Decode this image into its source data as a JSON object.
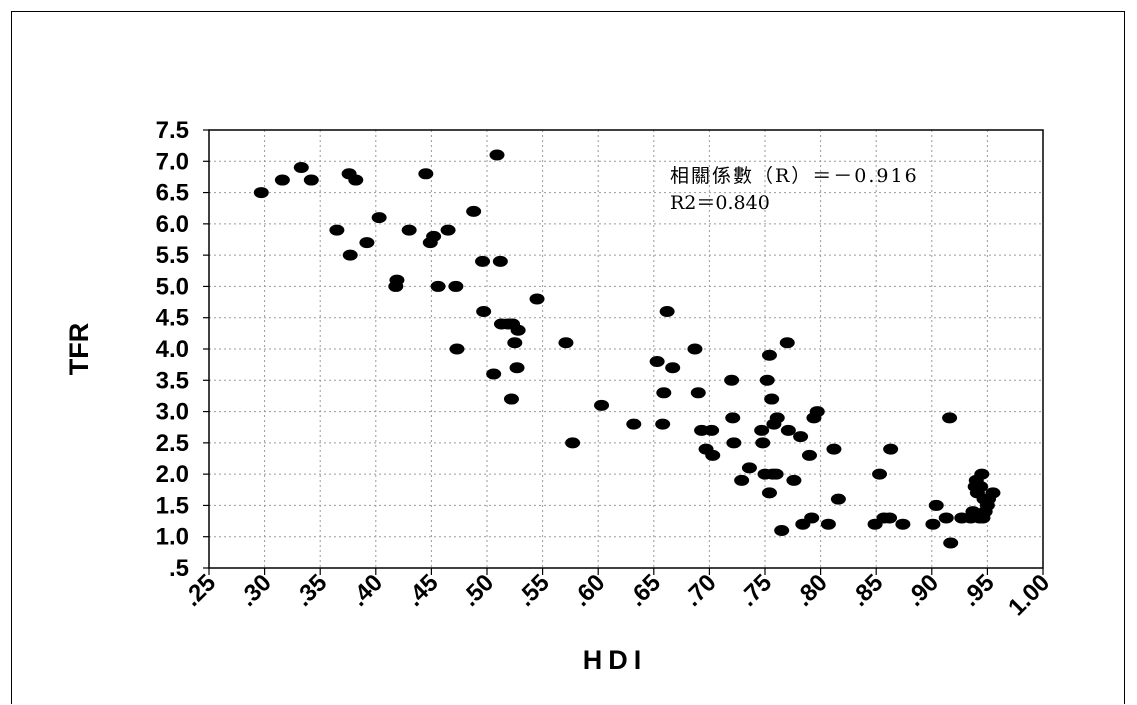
{
  "chart_data": {
    "type": "scatter",
    "title": "",
    "xlabel": "HDI",
    "ylabel": "TFR",
    "xlim": [
      0.25,
      1.0
    ],
    "ylim": [
      0.5,
      7.5
    ],
    "x_ticks": [
      0.25,
      0.3,
      0.35,
      0.4,
      0.45,
      0.5,
      0.55,
      0.6,
      0.65,
      0.7,
      0.75,
      0.8,
      0.85,
      0.9,
      0.95,
      1.0
    ],
    "x_tick_labels": [
      ".25",
      ".30",
      ".35",
      ".40",
      ".45",
      ".50",
      ".55",
      ".60",
      ".65",
      ".70",
      ".75",
      ".80",
      ".85",
      ".90",
      ".95",
      "1.00"
    ],
    "y_ticks": [
      0.5,
      1.0,
      1.5,
      2.0,
      2.5,
      3.0,
      3.5,
      4.0,
      4.5,
      5.0,
      5.5,
      6.0,
      6.5,
      7.0,
      7.5
    ],
    "y_tick_labels": [
      ".5",
      "1.0",
      "1.5",
      "2.0",
      "2.5",
      "3.0",
      "3.5",
      "4.0",
      "4.5",
      "5.0",
      "5.5",
      "6.0",
      "6.5",
      "7.0",
      "7.5"
    ],
    "grid": true,
    "grid_style": "dotted",
    "legend": "none",
    "marker_color": "#000000",
    "annotations": [
      "相關係數（R）＝－0.916",
      "R2＝0.840"
    ],
    "points": [
      [
        0.297,
        6.5
      ],
      [
        0.316,
        6.7
      ],
      [
        0.333,
        6.9
      ],
      [
        0.342,
        6.7
      ],
      [
        0.376,
        6.8
      ],
      [
        0.382,
        6.7
      ],
      [
        0.365,
        5.9
      ],
      [
        0.377,
        5.5
      ],
      [
        0.392,
        5.7
      ],
      [
        0.403,
        6.1
      ],
      [
        0.418,
        5.0
      ],
      [
        0.419,
        5.1
      ],
      [
        0.43,
        5.9
      ],
      [
        0.445,
        6.8
      ],
      [
        0.449,
        5.7
      ],
      [
        0.452,
        5.8
      ],
      [
        0.465,
        5.9
      ],
      [
        0.456,
        5.0
      ],
      [
        0.472,
        5.0
      ],
      [
        0.473,
        4.0
      ],
      [
        0.488,
        6.2
      ],
      [
        0.496,
        5.4
      ],
      [
        0.497,
        4.6
      ],
      [
        0.506,
        3.6
      ],
      [
        0.509,
        7.1
      ],
      [
        0.512,
        5.4
      ],
      [
        0.513,
        4.4
      ],
      [
        0.519,
        4.4
      ],
      [
        0.522,
        3.2
      ],
      [
        0.523,
        4.4
      ],
      [
        0.525,
        4.1
      ],
      [
        0.527,
        3.7
      ],
      [
        0.528,
        4.3
      ],
      [
        0.545,
        4.8
      ],
      [
        0.571,
        4.1
      ],
      [
        0.577,
        2.5
      ],
      [
        0.603,
        3.1
      ],
      [
        0.632,
        2.8
      ],
      [
        0.653,
        3.8
      ],
      [
        0.659,
        3.3
      ],
      [
        0.658,
        2.8
      ],
      [
        0.662,
        4.6
      ],
      [
        0.667,
        3.7
      ],
      [
        0.687,
        4.0
      ],
      [
        0.69,
        3.3
      ],
      [
        0.693,
        2.7
      ],
      [
        0.697,
        2.4
      ],
      [
        0.702,
        2.7
      ],
      [
        0.703,
        2.3
      ],
      [
        0.72,
        3.5
      ],
      [
        0.721,
        2.9
      ],
      [
        0.722,
        2.5
      ],
      [
        0.729,
        1.9
      ],
      [
        0.736,
        2.1
      ],
      [
        0.747,
        2.7
      ],
      [
        0.748,
        2.5
      ],
      [
        0.75,
        2.0
      ],
      [
        0.752,
        3.5
      ],
      [
        0.754,
        1.7
      ],
      [
        0.754,
        3.9
      ],
      [
        0.756,
        3.2
      ],
      [
        0.757,
        2.0
      ],
      [
        0.758,
        2.8
      ],
      [
        0.76,
        2.0
      ],
      [
        0.761,
        2.9
      ],
      [
        0.765,
        1.1
      ],
      [
        0.77,
        4.1
      ],
      [
        0.771,
        2.7
      ],
      [
        0.776,
        1.9
      ],
      [
        0.782,
        2.6
      ],
      [
        0.784,
        1.2
      ],
      [
        0.79,
        2.3
      ],
      [
        0.792,
        1.3
      ],
      [
        0.794,
        2.9
      ],
      [
        0.797,
        3.0
      ],
      [
        0.807,
        1.2
      ],
      [
        0.812,
        2.4
      ],
      [
        0.816,
        1.6
      ],
      [
        0.849,
        1.2
      ],
      [
        0.853,
        2.0
      ],
      [
        0.857,
        1.3
      ],
      [
        0.862,
        1.3
      ],
      [
        0.863,
        2.4
      ],
      [
        0.874,
        1.2
      ],
      [
        0.901,
        1.2
      ],
      [
        0.904,
        1.5
      ],
      [
        0.913,
        1.3
      ],
      [
        0.916,
        2.9
      ],
      [
        0.917,
        0.9
      ],
      [
        0.927,
        1.3
      ],
      [
        0.935,
        1.3
      ],
      [
        0.937,
        1.4
      ],
      [
        0.939,
        1.8
      ],
      [
        0.94,
        1.9
      ],
      [
        0.941,
        1.7
      ],
      [
        0.943,
        1.3
      ],
      [
        0.944,
        1.8
      ],
      [
        0.945,
        2.0
      ],
      [
        0.946,
        1.3
      ],
      [
        0.947,
        1.6
      ],
      [
        0.948,
        1.4
      ],
      [
        0.95,
        1.5
      ],
      [
        0.951,
        1.6
      ],
      [
        0.955,
        1.7
      ]
    ]
  }
}
